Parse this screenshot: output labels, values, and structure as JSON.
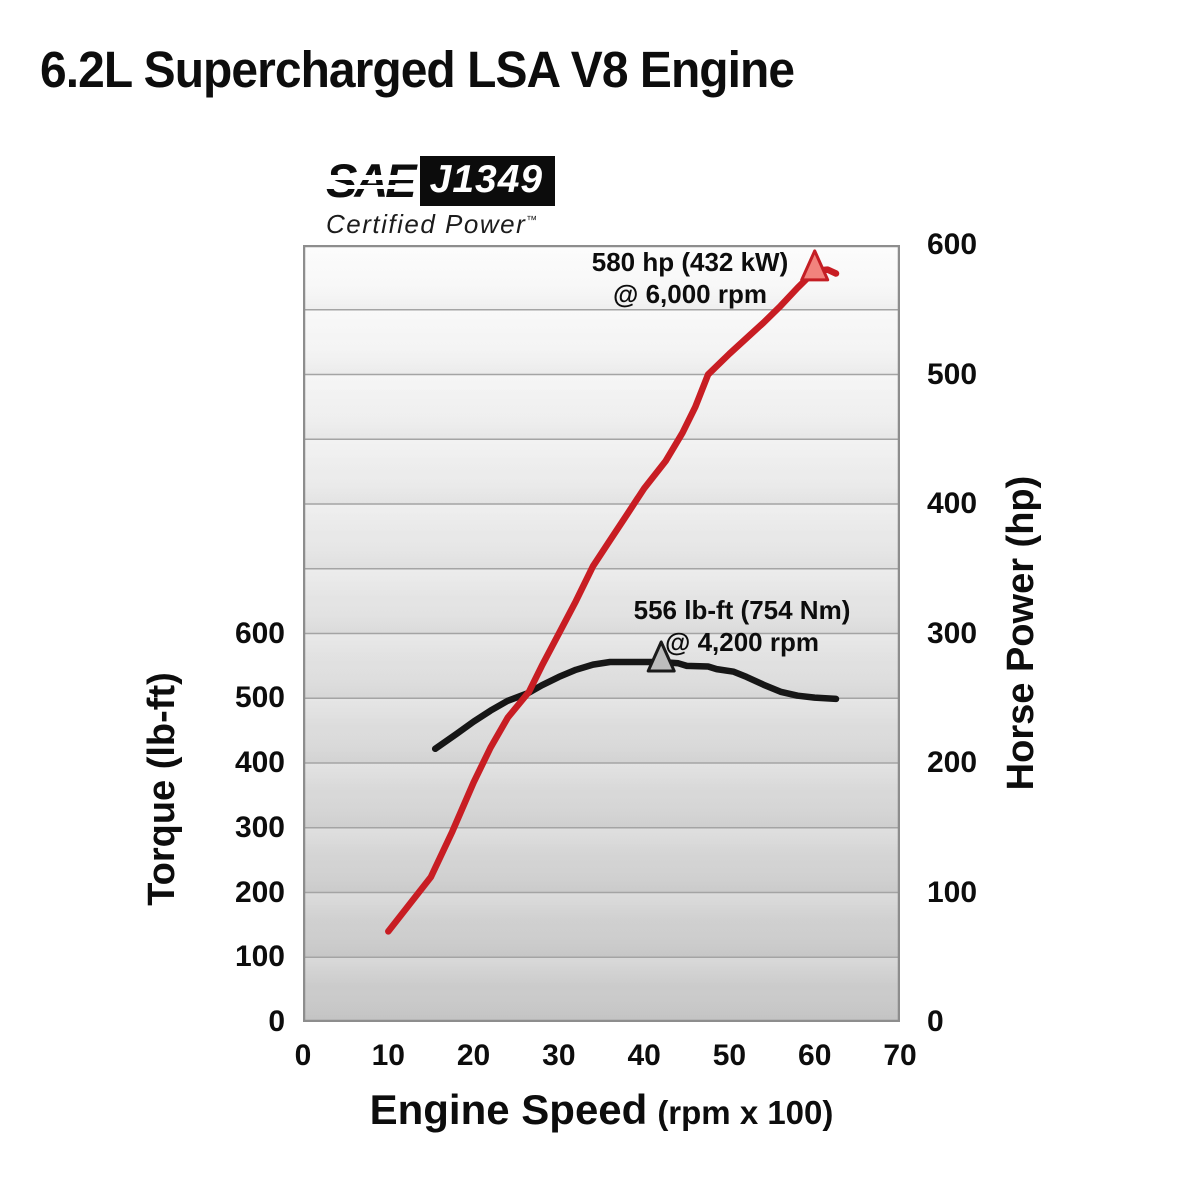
{
  "page": {
    "title": "6.2L Supercharged LSA V8 Engine"
  },
  "sae_badge": {
    "sae": "SAE",
    "standard": "J1349",
    "subtitle": "Certified Power",
    "tm": "™"
  },
  "chart_data": {
    "type": "line",
    "title": "6.2L Supercharged LSA V8 Engine",
    "x_axis": {
      "label_main": "Engine Speed",
      "label_sub": "(rpm x 100)",
      "min": 0,
      "max": 70,
      "ticks": [
        0,
        10,
        20,
        30,
        40,
        50,
        60,
        70
      ]
    },
    "left_axis": {
      "label": "Torque (lb-ft)",
      "min": 0,
      "scale_max": 1200,
      "ticks": [
        0,
        100,
        200,
        300,
        400,
        500,
        600
      ]
    },
    "right_axis": {
      "label": "Horse Power (hp)",
      "min": 0,
      "scale_max": 600,
      "ticks": [
        0,
        100,
        200,
        300,
        400,
        500,
        600
      ]
    },
    "plot": {
      "bg_top": "#fbfbfb",
      "bg_bottom": "#c9c9c9",
      "grid_color": "#a4a4a4",
      "border_color": "#8d8d8d",
      "gridline_bands": 12
    },
    "series": [
      {
        "name": "torque",
        "axis": "left",
        "color": "#161616",
        "width": 6.5,
        "points": [
          [
            15.5,
            422
          ],
          [
            18,
            445
          ],
          [
            20,
            464
          ],
          [
            22,
            481
          ],
          [
            24,
            496
          ],
          [
            26.4,
            508
          ],
          [
            28,
            520
          ],
          [
            30,
            533
          ],
          [
            32,
            544
          ],
          [
            34,
            552
          ],
          [
            36,
            556
          ],
          [
            42,
            556
          ],
          [
            44,
            554
          ],
          [
            45,
            550
          ],
          [
            47.5,
            549
          ],
          [
            48.5,
            545
          ],
          [
            50.5,
            541
          ],
          [
            52,
            533
          ],
          [
            54,
            521
          ],
          [
            56,
            510
          ],
          [
            58,
            504
          ],
          [
            60,
            501
          ],
          [
            62.5,
            499
          ]
        ]
      },
      {
        "name": "horsepower",
        "axis": "right",
        "color": "#c81d23",
        "width": 6.5,
        "points": [
          [
            10,
            70
          ],
          [
            15,
            112
          ],
          [
            17.5,
            147
          ],
          [
            20,
            185
          ],
          [
            22,
            212
          ],
          [
            24,
            235
          ],
          [
            26.5,
            255
          ],
          [
            28,
            275
          ],
          [
            30,
            300
          ],
          [
            32,
            325
          ],
          [
            34,
            352
          ],
          [
            36,
            372
          ],
          [
            38,
            392
          ],
          [
            40,
            412
          ],
          [
            42.5,
            433
          ],
          [
            44.5,
            455
          ],
          [
            46,
            475
          ],
          [
            47.5,
            500
          ],
          [
            50,
            516
          ],
          [
            52,
            528
          ],
          [
            54,
            540
          ],
          [
            56,
            553
          ],
          [
            58,
            567
          ],
          [
            60,
            580
          ],
          [
            61.5,
            581
          ],
          [
            62.5,
            578
          ]
        ]
      }
    ],
    "markers": [
      {
        "name": "hp-peak-marker",
        "series": "horsepower",
        "x": 60,
        "value": 580,
        "fill": "#f2837d",
        "stroke": "#c41e24"
      },
      {
        "name": "torque-peak-marker",
        "series": "torque",
        "x": 42,
        "value": 556,
        "fill": "#bcbcbc",
        "stroke": "#1a1a1a"
      }
    ],
    "annotations": [
      {
        "name": "hp-peak",
        "line1": "580 hp (432 kW)",
        "line2": "@ 6,000 rpm"
      },
      {
        "name": "torque-peak",
        "line1": "556 lb-ft (754 Nm)",
        "line2": "@ 4,200 rpm"
      }
    ]
  }
}
